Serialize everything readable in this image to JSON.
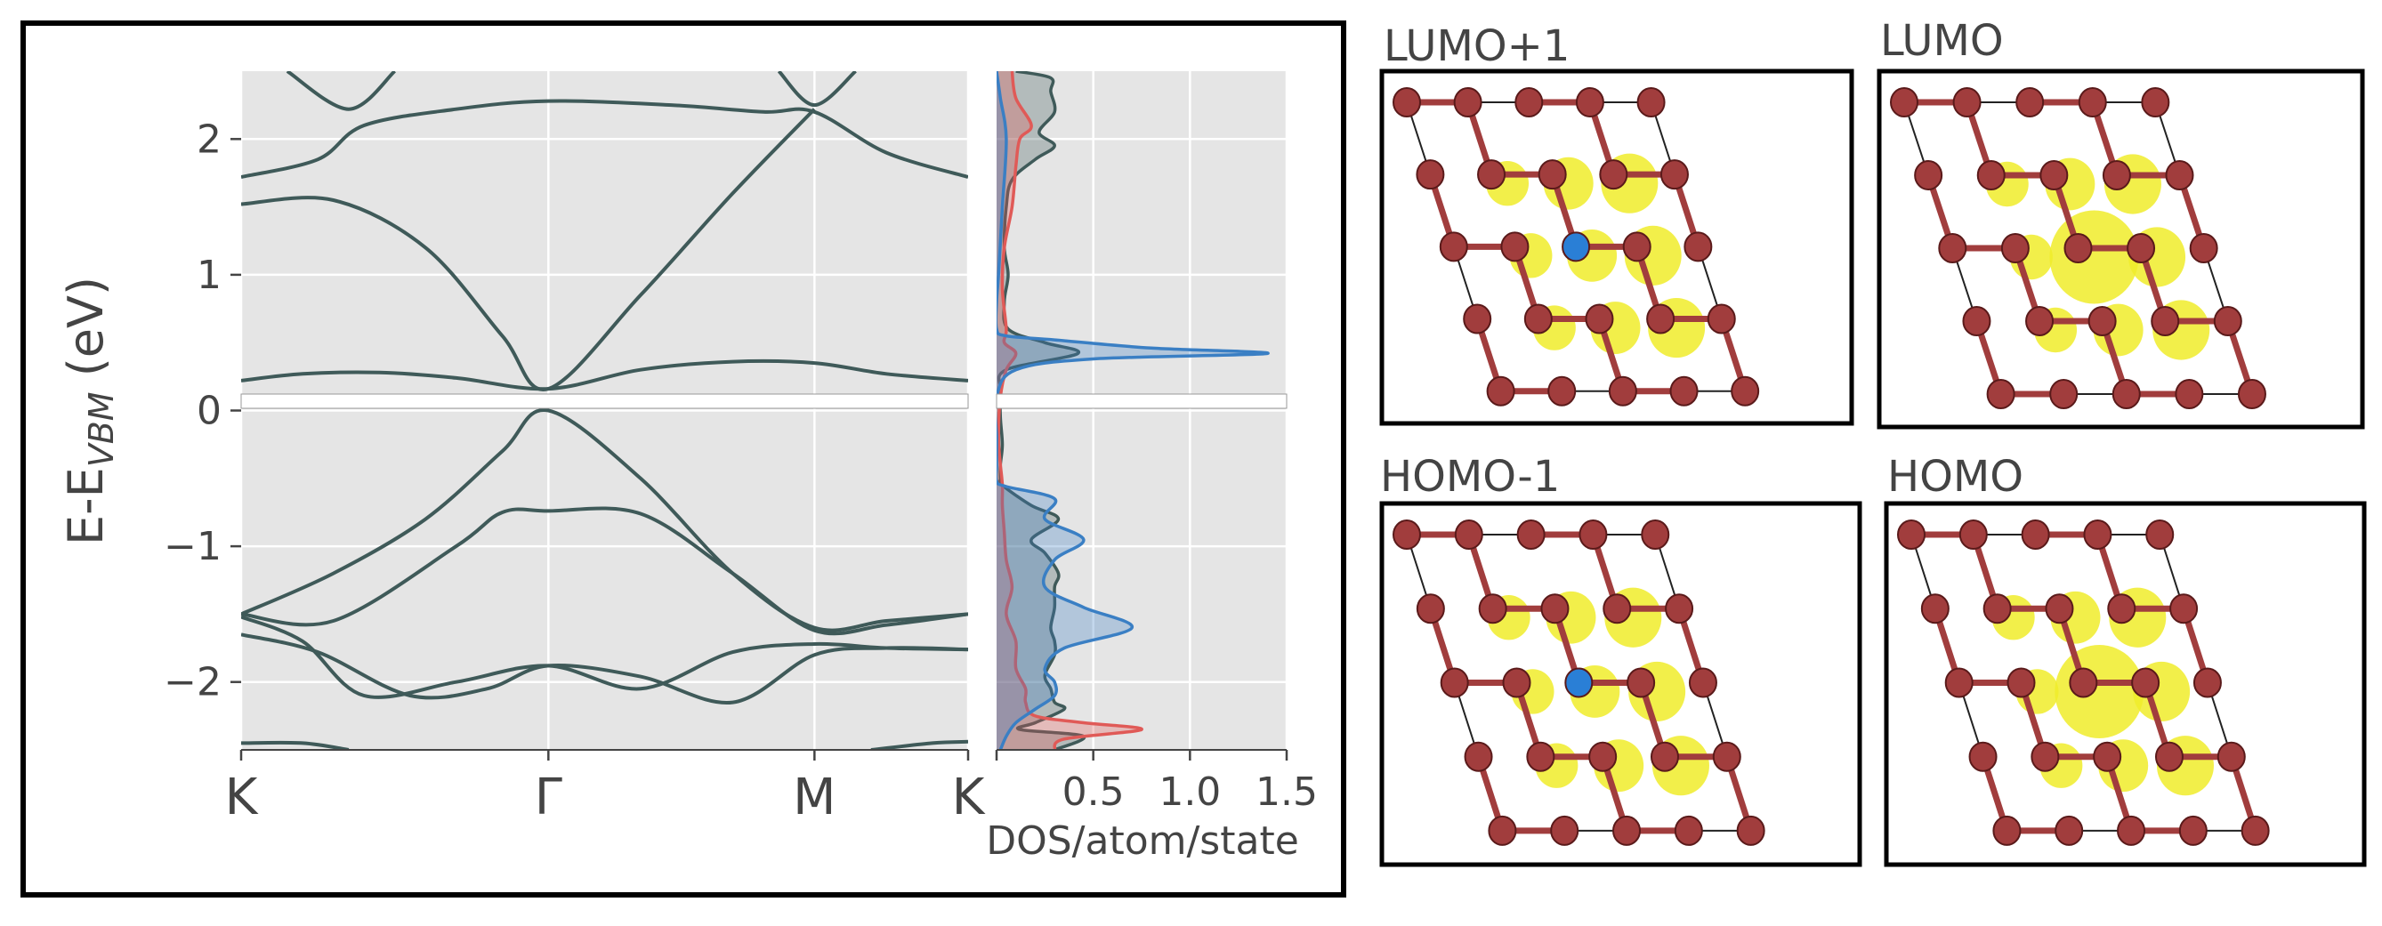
{
  "colors": {
    "band": "#3f5a59",
    "axes_bg": "#e5e5e5",
    "grid": "#ffffff",
    "text": "#444444",
    "dos_total": "#3f5a59",
    "dos_red": "#e05a57",
    "dos_blue": "#3a7fc4",
    "orbital": "#f0ec2a",
    "atom": "#a13d3d",
    "dopant": "#2a7fd6"
  },
  "chart_data": [
    {
      "type": "line",
      "ylabel_main": "E-E",
      "ylabel_sub": "VBM",
      "ylabel_unit": " (eV)",
      "xlabel": "",
      "ylim": [
        -2.5,
        2.5
      ],
      "yticks": [
        -2,
        -1,
        0,
        1,
        2
      ],
      "ytick_labels": [
        "−2",
        "−1",
        "0",
        "1",
        "2"
      ],
      "kpoints": [
        {
          "label": "K",
          "x": 0
        },
        {
          "label": "Γ",
          "x": 1
        },
        {
          "label": "M",
          "x": 1.866
        },
        {
          "label": "K",
          "x": 2.366
        }
      ],
      "grid": true,
      "series": [
        {
          "x": [
            0,
            0.2,
            0.45,
            0.7,
            1.0,
            1.3,
            1.6,
            1.866,
            2.1,
            2.366
          ],
          "y": [
            0.22,
            0.27,
            0.28,
            0.24,
            0.16,
            0.3,
            0.36,
            0.35,
            0.27,
            0.22
          ]
        },
        {
          "x": [
            0,
            0.3,
            0.6,
            0.85,
            1.0,
            1.3,
            1.6,
            1.866
          ],
          "y": [
            1.52,
            1.55,
            1.2,
            0.55,
            0.16,
            0.85,
            1.6,
            2.22
          ]
        },
        {
          "x": [
            0,
            0.25,
            0.4,
            0.7,
            1.0,
            1.4,
            1.7,
            1.866,
            2.1,
            2.366
          ],
          "y": [
            1.72,
            1.85,
            2.1,
            2.22,
            2.28,
            2.25,
            2.2,
            2.2,
            1.9,
            1.72
          ]
        },
        {
          "x": [
            0.15,
            0.35,
            0.5
          ],
          "y": [
            2.5,
            2.22,
            2.5
          ]
        },
        {
          "x": [
            1.75,
            1.866,
            2.0
          ],
          "y": [
            2.5,
            2.25,
            2.5
          ]
        },
        {
          "x": [
            0,
            0.3,
            0.6,
            0.85,
            1.0,
            1.3,
            1.6,
            1.866,
            2.1,
            2.366
          ],
          "y": [
            -1.5,
            -1.2,
            -0.8,
            -0.3,
            0.0,
            -0.5,
            -1.2,
            -1.6,
            -1.55,
            -1.5
          ]
        },
        {
          "x": [
            0,
            0.3,
            0.7,
            0.85,
            1.0,
            1.3,
            1.6,
            1.866,
            2.1,
            2.366
          ],
          "y": [
            -1.5,
            -1.55,
            -1.0,
            -0.75,
            -0.74,
            -0.76,
            -1.2,
            -1.62,
            -1.58,
            -1.5
          ]
        },
        {
          "x": [
            0,
            0.2,
            0.4,
            0.7,
            1.0,
            1.3,
            1.6,
            1.866,
            2.1,
            2.366
          ],
          "y": [
            -1.52,
            -1.7,
            -2.1,
            -2.0,
            -1.88,
            -2.05,
            -1.78,
            -1.72,
            -1.75,
            -1.76
          ]
        },
        {
          "x": [
            0,
            0.25,
            0.55,
            0.8,
            1.0,
            1.3,
            1.6,
            1.866,
            2.1,
            2.366
          ],
          "y": [
            -1.65,
            -1.78,
            -2.1,
            -2.05,
            -1.88,
            -1.96,
            -2.15,
            -1.8,
            -1.75,
            -1.76
          ]
        },
        {
          "x": [
            0,
            0.2,
            0.35
          ],
          "y": [
            -2.45,
            -2.45,
            -2.5
          ]
        },
        {
          "x": [
            2.05,
            2.25,
            2.366
          ],
          "y": [
            -2.5,
            -2.45,
            -2.44
          ]
        }
      ]
    },
    {
      "type": "area",
      "xlabel": "DOS/atom/state",
      "xlim": [
        0,
        1.5
      ],
      "xticks": [
        0.5,
        1.0,
        1.5
      ],
      "xtick_labels": [
        "0.5",
        "1.0",
        "1.5"
      ],
      "ylim": [
        -2.5,
        2.5
      ],
      "grid": true,
      "series": [
        {
          "key": "total",
          "x": [
            0.1,
            0.28,
            0.28,
            0.3,
            0.22,
            0.3,
            0.2,
            0.08,
            0.05,
            0.04,
            0.06,
            0.04,
            0.06,
            0.25,
            0.42,
            0.05,
            0.02,
            0.02,
            0.03,
            0.02,
            0.02,
            0.03,
            0.18,
            0.32,
            0.18,
            0.25,
            0.32,
            0.3,
            0.3,
            0.28,
            0.3,
            0.3,
            0.25,
            0.28,
            0.3,
            0.35,
            0.2,
            0.12,
            0.45,
            0.3
          ],
          "y": [
            2.5,
            2.45,
            2.35,
            2.2,
            2.05,
            1.95,
            1.85,
            1.7,
            1.5,
            1.2,
            1.0,
            0.8,
            0.6,
            0.5,
            0.42,
            0.3,
            0.15,
            -0.05,
            -0.25,
            -0.4,
            -0.5,
            -0.55,
            -0.7,
            -0.8,
            -0.95,
            -1.05,
            -1.2,
            -1.3,
            -1.45,
            -1.6,
            -1.7,
            -1.8,
            -1.95,
            -2.05,
            -2.15,
            -2.2,
            -2.3,
            -2.35,
            -2.4,
            -2.5
          ]
        },
        {
          "key": "red",
          "x": [
            0.08,
            0.1,
            0.18,
            0.12,
            0.1,
            0.08,
            0.04,
            0.03,
            0.05,
            0.04,
            0.1,
            0.05,
            0.02,
            0.01,
            0.02,
            0.03,
            0.03,
            0.04,
            0.05,
            0.08,
            0.05,
            0.1,
            0.1,
            0.15,
            0.15,
            0.2,
            0.45,
            0.75,
            0.35,
            0.3
          ],
          "y": [
            2.5,
            2.3,
            2.1,
            2.0,
            1.8,
            1.5,
            1.2,
            0.9,
            0.6,
            0.5,
            0.42,
            0.3,
            0.1,
            -0.2,
            -0.4,
            -0.55,
            -0.7,
            -0.9,
            -1.1,
            -1.3,
            -1.5,
            -1.7,
            -1.9,
            -2.05,
            -2.15,
            -2.25,
            -2.3,
            -2.35,
            -2.42,
            -2.5
          ]
        },
        {
          "key": "blue",
          "x": [
            0.0,
            0.02,
            0.05,
            0.03,
            0.01,
            0.0,
            0.0,
            0.05,
            0.3,
            0.8,
            1.4,
            0.5,
            0.1,
            0.0,
            0.0,
            0.0,
            0.0,
            0.05,
            0.3,
            0.25,
            0.45,
            0.3,
            0.25,
            0.45,
            0.7,
            0.35,
            0.25,
            0.3,
            0.3,
            0.2,
            0.1,
            0.05,
            0.02
          ],
          "y": [
            2.5,
            2.3,
            2.0,
            1.5,
            1.0,
            0.8,
            0.6,
            0.55,
            0.52,
            0.46,
            0.42,
            0.38,
            0.3,
            0.1,
            -0.2,
            -0.4,
            -0.52,
            -0.56,
            -0.65,
            -0.8,
            -0.95,
            -1.1,
            -1.3,
            -1.45,
            -1.6,
            -1.75,
            -1.9,
            -2.0,
            -2.1,
            -2.2,
            -2.3,
            -2.4,
            -2.5
          ]
        }
      ]
    }
  ],
  "orbitals": [
    {
      "title": "LUMO+1",
      "dopant": true
    },
    {
      "title": "LUMO",
      "dopant": false
    },
    {
      "title": "HOMO-1",
      "dopant": true
    },
    {
      "title": "HOMO",
      "dopant": false
    }
  ]
}
